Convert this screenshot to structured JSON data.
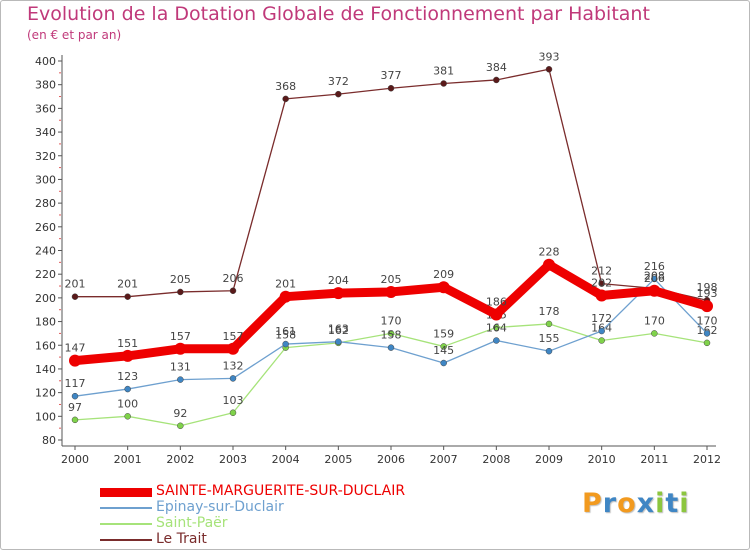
{
  "chart_data": {
    "type": "line",
    "title": "Evolution de la Dotation Globale de Fonctionnement par Habitant",
    "subtitle": "(en € et par an)",
    "categories": [
      "2000",
      "2001",
      "2002",
      "2003",
      "2004",
      "2005",
      "2006",
      "2007",
      "2008",
      "2009",
      "2010",
      "2011",
      "2012"
    ],
    "ylim": [
      80,
      400
    ],
    "yticks": [
      80,
      100,
      120,
      140,
      160,
      180,
      200,
      220,
      240,
      260,
      280,
      300,
      320,
      340,
      360,
      380,
      400
    ],
    "grid": false,
    "legend_position": "bottom-left",
    "series": [
      {
        "name": "Le Trait",
        "color": "#7a2c2c",
        "marker": "#5a1a1a",
        "values": [
          201,
          201,
          205,
          206,
          368,
          372,
          377,
          381,
          384,
          393,
          212,
          208,
          198
        ]
      },
      {
        "name": "Saint-Paër",
        "color": "#a6e37a",
        "marker": "#7fd24a",
        "values": [
          97,
          100,
          92,
          103,
          158,
          162,
          170,
          159,
          175,
          178,
          164,
          170,
          162
        ]
      },
      {
        "name": "Epinay-sur-Duclair",
        "color": "#6ea0cf",
        "marker": "#3f86c4",
        "values": [
          117,
          123,
          131,
          132,
          161,
          163,
          158,
          145,
          164,
          155,
          172,
          216,
          170
        ]
      },
      {
        "name": "SAINTE-MARGUERITE-SUR-DUCLAIR",
        "color": "#ee0000",
        "marker": "#ee0000",
        "values": [
          147,
          151,
          157,
          157,
          201,
          204,
          205,
          209,
          186,
          228,
          202,
          206,
          193
        ]
      }
    ]
  },
  "legend": [
    {
      "name": "SAINTE-MARGUERITE-SUR-DUCLAIR",
      "color": "#ee0000"
    },
    {
      "name": "Epinay-sur-Duclair",
      "color": "#6ea0cf"
    },
    {
      "name": "Saint-Paër",
      "color": "#a6e37a"
    },
    {
      "name": "Le Trait",
      "color": "#7a2c2c"
    }
  ],
  "logo": {
    "text": "Proxiti",
    "letters": [
      "P",
      "r",
      "o",
      "x",
      "i",
      "t",
      "i"
    ],
    "colors": [
      "#f29a1f",
      "#3f86c4",
      "#f29a1f",
      "#3f86c4",
      "#8cc63f",
      "#3f86c4",
      "#8cc63f"
    ]
  }
}
